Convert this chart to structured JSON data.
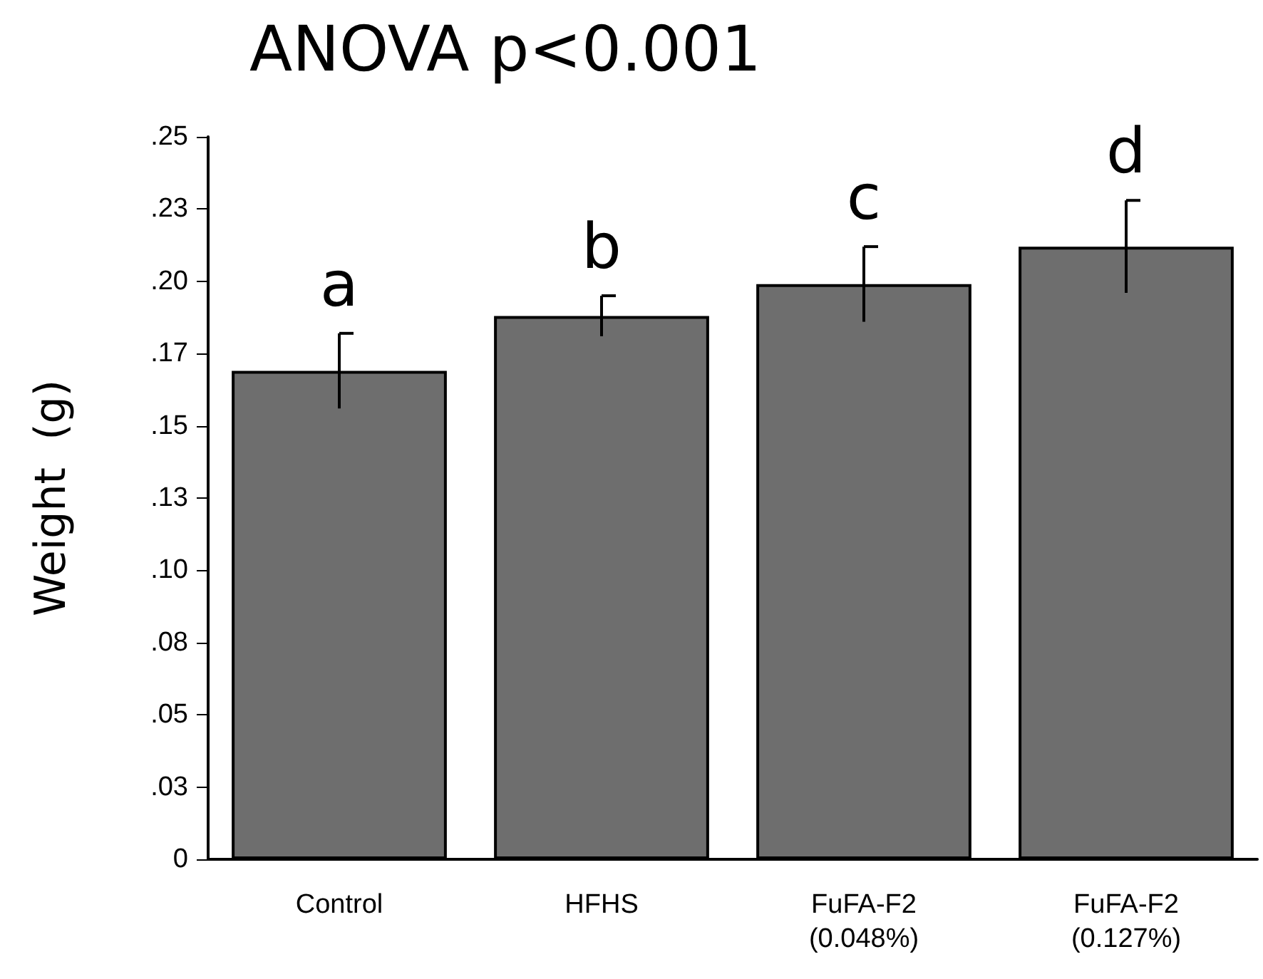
{
  "chart_data": {
    "type": "bar",
    "title": "ANOVA p<0.001",
    "ylabel": "Weight  (g)",
    "categories": [
      "Control",
      "HFHS",
      "FuFA-F2\n(0.048%)",
      "FuFA-F2\n(0.127%)"
    ],
    "values": [
      0.169,
      0.188,
      0.199,
      0.212
    ],
    "errors": [
      0.013,
      0.007,
      0.013,
      0.016
    ],
    "color": "#6e6e6e",
    "ylim": [
      0,
      0.25
    ],
    "yticks": [
      0,
      {
        "value": 0.025,
        "label": ".03"
      },
      {
        "value": 0.05,
        "label": ".05"
      },
      {
        "value": 0.075,
        "label": ".08"
      },
      {
        "value": 0.1,
        "label": ".10"
      },
      {
        "value": 0.125,
        "label": ".13"
      },
      {
        "value": 0.15,
        "label": ".15"
      },
      {
        "value": 0.175,
        "label": ".17"
      },
      {
        "value": 0.2,
        "label": ".20"
      },
      {
        "value": 0.225,
        "label": ".23"
      },
      {
        "value": 0.25,
        "label": ".25"
      }
    ],
    "annotations": [
      "a",
      "b",
      "c",
      "d"
    ]
  }
}
